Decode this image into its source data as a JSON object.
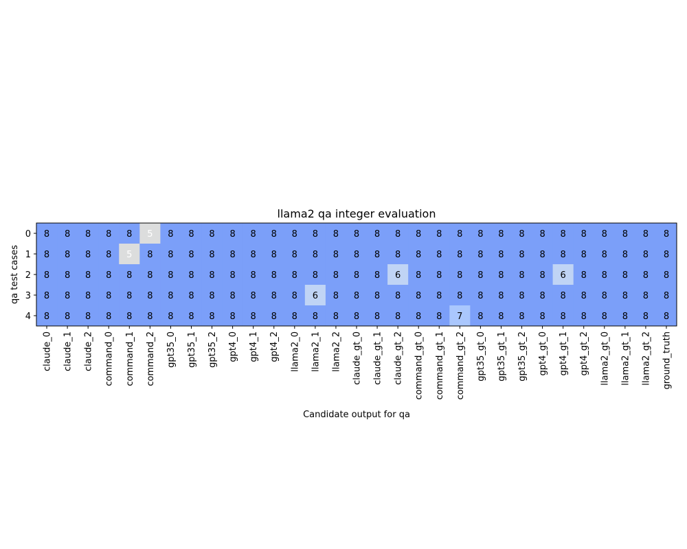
{
  "chart_data": {
    "type": "heatmap",
    "title": "llama2 qa integer evaluation",
    "xlabel": "Candidate output for qa",
    "ylabel": "qa test cases",
    "x_categories": [
      "claude_0",
      "claude_1",
      "claude_2",
      "command_0",
      "command_1",
      "command_2",
      "gpt35_0",
      "gpt35_1",
      "gpt35_2",
      "gpt4_0",
      "gpt4_1",
      "gpt4_2",
      "llama2_0",
      "llama2_1",
      "llama2_2",
      "claude_gt_0",
      "claude_gt_1",
      "claude_gt_2",
      "command_gt_0",
      "command_gt_1",
      "command_gt_2",
      "gpt35_gt_0",
      "gpt35_gt_1",
      "gpt35_gt_2",
      "gpt4_gt_0",
      "gpt4_gt_1",
      "gpt4_gt_2",
      "llama2_gt_0",
      "llama2_gt_1",
      "llama2_gt_2",
      "ground_truth"
    ],
    "y_categories": [
      "0",
      "1",
      "2",
      "3",
      "4"
    ],
    "values": [
      [
        8,
        8,
        8,
        8,
        8,
        5,
        8,
        8,
        8,
        8,
        8,
        8,
        8,
        8,
        8,
        8,
        8,
        8,
        8,
        8,
        8,
        8,
        8,
        8,
        8,
        8,
        8,
        8,
        8,
        8,
        8
      ],
      [
        8,
        8,
        8,
        8,
        5,
        8,
        8,
        8,
        8,
        8,
        8,
        8,
        8,
        8,
        8,
        8,
        8,
        8,
        8,
        8,
        8,
        8,
        8,
        8,
        8,
        8,
        8,
        8,
        8,
        8,
        8
      ],
      [
        8,
        8,
        8,
        8,
        8,
        8,
        8,
        8,
        8,
        8,
        8,
        8,
        8,
        8,
        8,
        8,
        8,
        6,
        8,
        8,
        8,
        8,
        8,
        8,
        8,
        6,
        8,
        8,
        8,
        8,
        8
      ],
      [
        8,
        8,
        8,
        8,
        8,
        8,
        8,
        8,
        8,
        8,
        8,
        8,
        8,
        6,
        8,
        8,
        8,
        8,
        8,
        8,
        8,
        8,
        8,
        8,
        8,
        8,
        8,
        8,
        8,
        8,
        8
      ],
      [
        8,
        8,
        8,
        8,
        8,
        8,
        8,
        8,
        8,
        8,
        8,
        8,
        8,
        8,
        8,
        8,
        8,
        8,
        8,
        8,
        7,
        8,
        8,
        8,
        8,
        8,
        8,
        8,
        8,
        8,
        8
      ]
    ],
    "colormap": "coolwarm",
    "value_colors": {
      "5": "#dcdddd",
      "6": "#c0d4f5",
      "7": "#aac7fd",
      "8": "#7b9ff9"
    },
    "light_text_values": [
      5
    ],
    "grid": false
  }
}
